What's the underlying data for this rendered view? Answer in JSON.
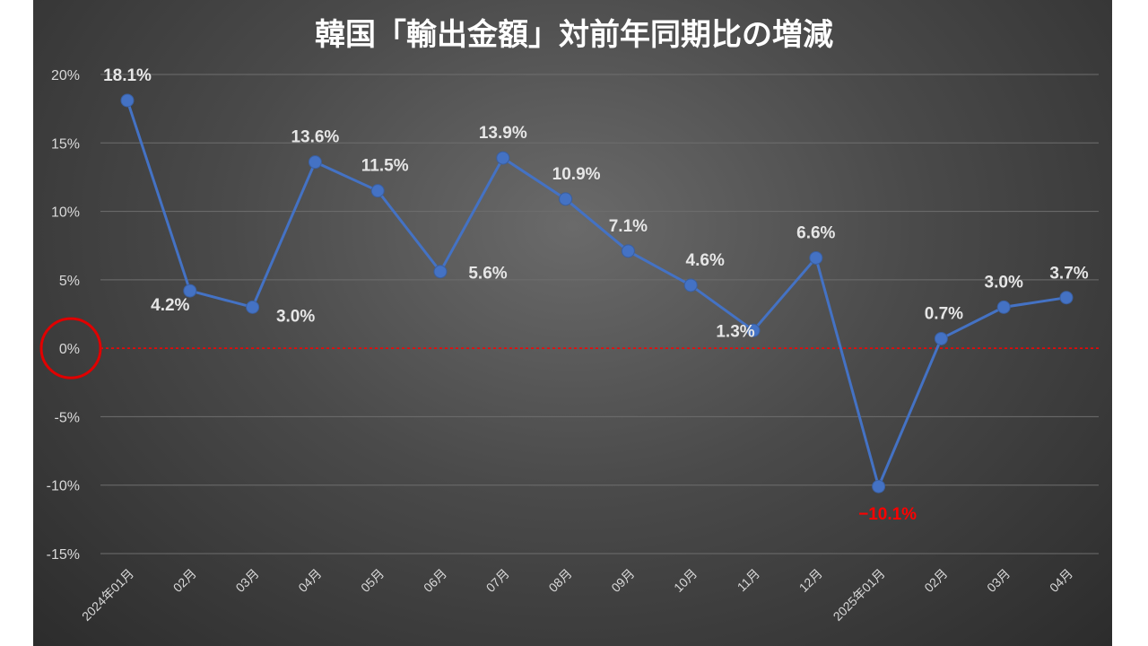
{
  "chart_data": {
    "type": "line",
    "title": "韓国「輸出金額」対前年同期比の増減",
    "xlabel": "",
    "ylabel": "",
    "ylim": [
      -15,
      20
    ],
    "yticks": [
      20,
      15,
      10,
      5,
      0,
      -5,
      -10,
      -15
    ],
    "ytick_labels": [
      "20%",
      "15%",
      "10%",
      "5%",
      "0%",
      "-5%",
      "-10%",
      "-15%"
    ],
    "categories": [
      "2024年01月",
      "02月",
      "03月",
      "04月",
      "05月",
      "06月",
      "07月",
      "08月",
      "09月",
      "10月",
      "11月",
      "12月",
      "2025年01月",
      "02月",
      "03月",
      "04月"
    ],
    "series": [
      {
        "values": [
          18.1,
          4.2,
          3.0,
          13.6,
          11.5,
          5.6,
          13.9,
          10.9,
          7.1,
          4.6,
          1.3,
          6.6,
          -10.1,
          0.7,
          3.0,
          3.7
        ],
        "data_labels": [
          "18.1%",
          "4.2%",
          "3.0%",
          "13.6%",
          "11.5%",
          "5.6%",
          "13.9%",
          "10.9%",
          "7.1%",
          "4.6%",
          "1.3%",
          "6.6%",
          "−10.1%",
          "0.7%",
          "3.0%",
          "3.7%"
        ]
      }
    ],
    "grid": true,
    "legend": "none",
    "zero_line_color": "#ff0000",
    "line_color": "#4472c4",
    "negative_label_color": "#ff0000",
    "highlight": "red circle around 0% tick"
  }
}
